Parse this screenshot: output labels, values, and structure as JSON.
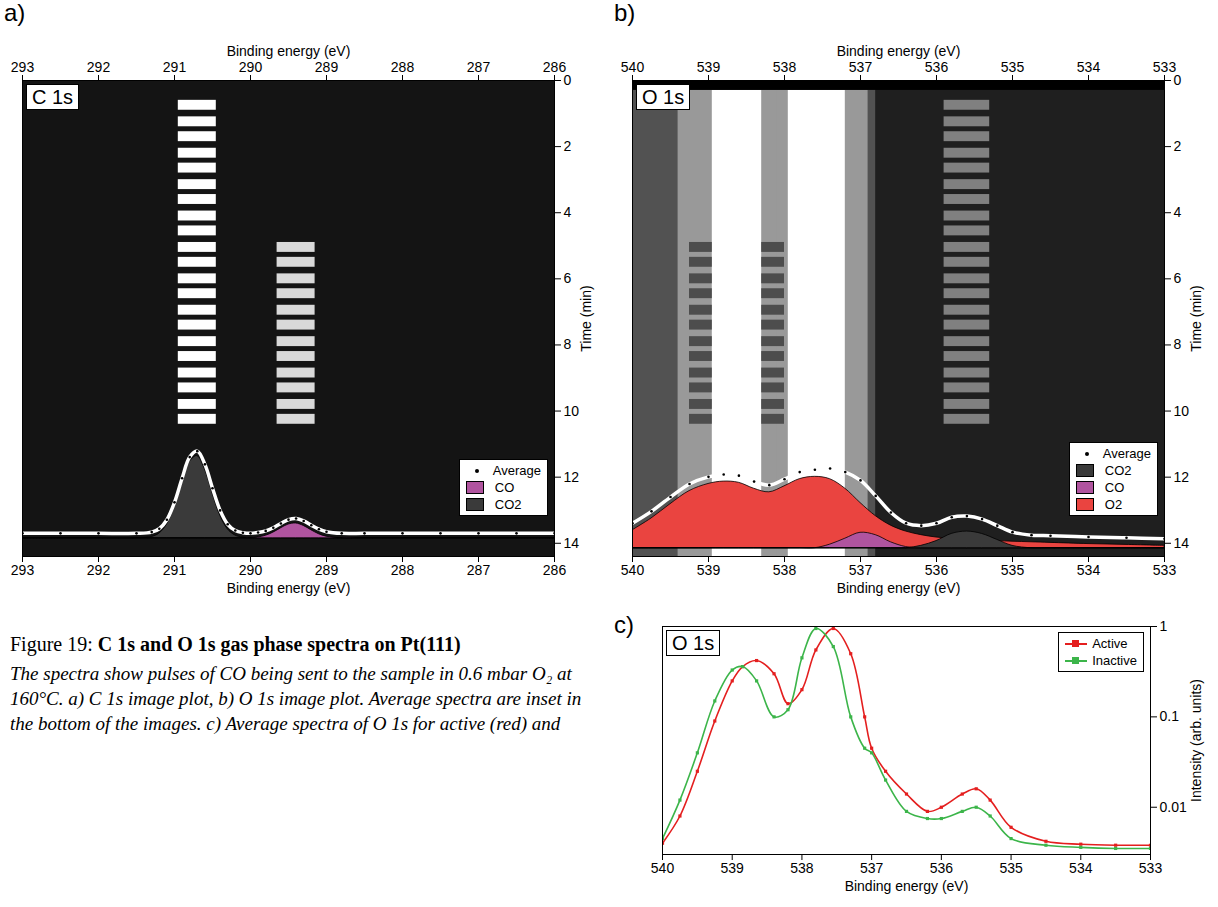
{
  "caption": {
    "label": "Figure 19:",
    "title": "C 1s and O 1s gas phase spectra on Pt(111)",
    "text": "The spectra show pulses of CO being sent to the sample in 0.6 mbar O₂ at 160°C. a) C 1s image plot, b) O 1s image plot. Average spectra are inset in the bottom of the images. c) Average spectra of O 1s for active (red) and"
  },
  "chart_data": [
    {
      "type": "image",
      "panel": "a)",
      "title": "C 1s",
      "x_label": "Binding energy (eV)",
      "y_label": "Time (min)",
      "xlim": [
        293,
        286
      ],
      "xticks": [
        293,
        292,
        291,
        290,
        289,
        288,
        287,
        286
      ],
      "ylim": [
        0,
        14.4
      ],
      "yticks": [
        0,
        2,
        4,
        6,
        8,
        10,
        12,
        14
      ],
      "zlim": [
        0,
        1
      ],
      "legend": "bottom-right",
      "cells": [
        {
          "energy": [
            293,
            286
          ],
          "time": [
            0,
            14.4
          ],
          "value": 0.08
        },
        {
          "energy": [
            290.95,
            290.45
          ],
          "times": [
            0.6,
            1.1,
            1.55,
            2.05,
            2.5,
            3.0,
            3.45,
            3.95,
            4.4,
            4.9,
            5.35,
            5.85,
            6.3,
            6.8,
            7.25,
            7.75,
            8.2,
            8.7,
            9.15,
            9.65,
            10.1
          ],
          "duration": 0.3,
          "value": 1
        },
        {
          "energy": [
            289.65,
            289.15
          ],
          "times": [
            4.9,
            5.35,
            5.85,
            6.3,
            6.8,
            7.25,
            7.75,
            8.2,
            8.7,
            9.15,
            9.65,
            10.1
          ],
          "duration": 0.3,
          "value": 0.85
        }
      ],
      "x": [
        293,
        292.5,
        292,
        291.5,
        291.3,
        291.2,
        291.1,
        291,
        290.9,
        290.8,
        290.7,
        290.6,
        290.5,
        290.4,
        290.3,
        290.2,
        290.1,
        290,
        289.9,
        289.8,
        289.7,
        289.6,
        289.5,
        289.4,
        289.3,
        289.2,
        289.1,
        289,
        288.8,
        288.5,
        288,
        287.5,
        287,
        286.5,
        286
      ],
      "series": [
        {
          "name": "Average",
          "type": "line",
          "color": "white",
          "marker": "dot",
          "values": [
            0.06,
            0.06,
            0.06,
            0.06,
            0.075,
            0.116,
            0.225,
            0.435,
            0.727,
            0.983,
            1.055,
            0.895,
            0.606,
            0.338,
            0.17,
            0.094,
            0.068,
            0.06,
            0.07,
            0.09,
            0.128,
            0.18,
            0.226,
            0.239,
            0.21,
            0.158,
            0.11,
            0.08,
            0.06,
            0.06,
            0.06,
            0.06,
            0.06,
            0.06,
            0.06
          ]
        },
        {
          "name": "CO",
          "type": "area",
          "color": "#b0549f",
          "values": [
            0,
            0,
            0,
            0,
            0,
            0,
            0,
            0,
            0,
            0,
            0,
            0,
            0,
            0,
            0,
            0,
            0,
            0,
            0.01,
            0.03,
            0.068,
            0.12,
            0.166,
            0.179,
            0.15,
            0.098,
            0.05,
            0.02,
            0,
            0,
            0,
            0,
            0,
            0,
            0
          ]
        },
        {
          "name": "CO2",
          "type": "area",
          "color": "#3a3a3a",
          "values": [
            0,
            0,
            0,
            0,
            0.015,
            0.056,
            0.165,
            0.375,
            0.667,
            0.923,
            0.995,
            0.835,
            0.546,
            0.278,
            0.11,
            0.034,
            0.008,
            0,
            0,
            0,
            0,
            0,
            0,
            0,
            0,
            0,
            0,
            0,
            0,
            0,
            0,
            0,
            0,
            0,
            0
          ]
        }
      ]
    },
    {
      "type": "image",
      "panel": "b)",
      "title": "O 1s",
      "x_label": "Binding energy (eV)",
      "y_label": "Time (min)",
      "xlim": [
        540,
        533
      ],
      "xticks": [
        540,
        539,
        538,
        537,
        536,
        535,
        534,
        533
      ],
      "ylim": [
        0,
        14.4
      ],
      "yticks": [
        0,
        2,
        4,
        6,
        8,
        10,
        12,
        14
      ],
      "zlim": [
        0,
        1
      ],
      "legend": "bottom-right",
      "cells": [
        {
          "energy": [
            540,
            533
          ],
          "time": [
            0,
            14.4
          ],
          "value": 0.12
        },
        {
          "energy": [
            540,
            536.8
          ],
          "time": [
            0,
            14.4
          ],
          "value": 0.32
        },
        {
          "energy": [
            539.4,
            538.0
          ],
          "time": [
            0.3,
            14.4
          ],
          "value": 0.6
        },
        {
          "energy": [
            538.95,
            538.3
          ],
          "time": [
            0.3,
            14.4
          ],
          "value": 1
        },
        {
          "energy": [
            538.1,
            536.9
          ],
          "time": [
            0.3,
            14.4
          ],
          "value": 0.6
        },
        {
          "energy": [
            537.95,
            537.2
          ],
          "time": [
            0.3,
            14.4
          ],
          "value": 1
        },
        {
          "energy": [
            539.25,
            538.95
          ],
          "times": [
            4.9,
            5.35,
            5.85,
            6.3,
            6.8,
            7.25,
            7.75,
            8.2,
            8.7,
            9.15,
            9.65,
            10.1
          ],
          "duration": 0.3,
          "value": 0.3
        },
        {
          "energy": [
            538.3,
            538.0
          ],
          "times": [
            4.9,
            5.35,
            5.85,
            6.3,
            6.8,
            7.25,
            7.75,
            8.2,
            8.7,
            9.15,
            9.65,
            10.1
          ],
          "duration": 0.3,
          "value": 0.3
        },
        {
          "energy": [
            535.9,
            535.3
          ],
          "times": [
            0.6,
            1.1,
            1.55,
            2.05,
            2.5,
            3.0,
            3.45,
            3.95,
            4.4,
            4.9,
            5.35,
            5.85,
            6.3,
            6.8,
            7.25,
            7.75,
            8.2,
            8.7,
            9.15,
            9.65,
            10.1
          ],
          "duration": 0.3,
          "value": 0.5
        },
        {
          "energy": [
            540,
            533
          ],
          "time": [
            0,
            0.3
          ],
          "value": 0
        }
      ],
      "x": [
        540,
        539.75,
        539.5,
        539.25,
        539,
        538.8,
        538.6,
        538.4,
        538.2,
        538,
        537.8,
        537.6,
        537.4,
        537.2,
        537,
        536.8,
        536.6,
        536.4,
        536.2,
        536,
        535.8,
        535.6,
        535.4,
        535.2,
        535,
        534.75,
        534.5,
        534,
        533.5,
        533
      ],
      "series": [
        {
          "name": "Average",
          "type": "line",
          "color": "white",
          "marker": "dot",
          "values": [
            0.21,
            0.31,
            0.43,
            0.54,
            0.6,
            0.62,
            0.61,
            0.56,
            0.53,
            0.58,
            0.64,
            0.66,
            0.67,
            0.64,
            0.57,
            0.44,
            0.3,
            0.21,
            0.19,
            0.21,
            0.26,
            0.27,
            0.245,
            0.19,
            0.135,
            0.11,
            0.105,
            0.095,
            0.088,
            0.08
          ]
        },
        {
          "name": "CO2",
          "type": "area",
          "color": "#3a3a3a",
          "values": [
            0,
            0,
            0,
            0,
            0,
            0,
            0,
            0,
            0,
            0,
            0,
            0,
            0,
            0,
            0,
            0,
            0,
            0,
            0.02,
            0.06,
            0.12,
            0.14,
            0.12,
            0.07,
            0.02,
            0,
            0,
            0,
            0,
            0
          ]
        },
        {
          "name": "CO",
          "type": "area",
          "color": "#b0549f",
          "values": [
            0,
            0,
            0,
            0,
            0,
            0,
            0,
            0,
            0,
            0,
            0,
            0,
            0.03,
            0.08,
            0.13,
            0.11,
            0.05,
            0.01,
            0,
            0,
            0,
            0,
            0,
            0,
            0,
            0,
            0,
            0,
            0,
            0
          ]
        },
        {
          "name": "O2",
          "type": "area",
          "color": "#ea4440",
          "values": [
            0.15,
            0.25,
            0.37,
            0.48,
            0.54,
            0.56,
            0.55,
            0.5,
            0.47,
            0.52,
            0.58,
            0.6,
            0.58,
            0.5,
            0.38,
            0.27,
            0.19,
            0.14,
            0.11,
            0.09,
            0.08,
            0.07,
            0.065,
            0.06,
            0.055,
            0.05,
            0.045,
            0.035,
            0.028,
            0.02
          ]
        }
      ]
    },
    {
      "type": "line",
      "panel": "c)",
      "title": "O 1s",
      "x_label": "Binding energy (eV)",
      "y_label": "Intensity (arb. units)",
      "log": "y",
      "xlim": [
        540,
        533
      ],
      "xticks": [
        540,
        539,
        538,
        537,
        536,
        535,
        534,
        533
      ],
      "ylim": [
        0.003,
        1
      ],
      "yticks": [
        0.01,
        0.1,
        1
      ],
      "legend": "top-right",
      "x": [
        540,
        539.75,
        539.5,
        539.25,
        539,
        538.85,
        538.65,
        538.4,
        538.2,
        538,
        537.8,
        537.55,
        537.3,
        537.1,
        537,
        536.8,
        536.5,
        536.2,
        536,
        535.7,
        535.5,
        535.3,
        535,
        534.5,
        534,
        533.5,
        533
      ],
      "series": [
        {
          "name": "Active",
          "color": "#e41f1f",
          "marker": "square",
          "line_style": "solid",
          "values": [
            0.004,
            0.008,
            0.025,
            0.09,
            0.25,
            0.36,
            0.42,
            0.3,
            0.14,
            0.2,
            0.55,
            0.95,
            0.5,
            0.1,
            0.045,
            0.025,
            0.014,
            0.009,
            0.01,
            0.014,
            0.016,
            0.012,
            0.006,
            0.0042,
            0.0039,
            0.0038,
            0.0038
          ]
        },
        {
          "name": "Inactive",
          "color": "#3cb54a",
          "marker": "square",
          "line_style": "solid",
          "values": [
            0.0045,
            0.012,
            0.04,
            0.15,
            0.33,
            0.36,
            0.25,
            0.1,
            0.12,
            0.45,
            0.95,
            0.6,
            0.1,
            0.045,
            0.04,
            0.02,
            0.009,
            0.0075,
            0.0075,
            0.009,
            0.01,
            0.008,
            0.0045,
            0.0038,
            0.0036,
            0.0035,
            0.0035
          ]
        }
      ]
    }
  ]
}
